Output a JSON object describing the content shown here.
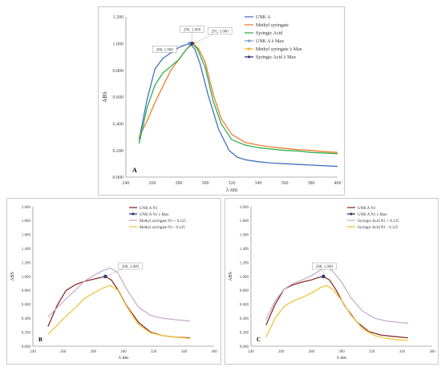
{
  "chart_data": [
    {
      "panel": "A",
      "type": "line",
      "xlabel": "λ nm",
      "ylabel": "ABS",
      "xlim": [
        240,
        400
      ],
      "ylim": [
        0,
        1.2
      ],
      "xticks": [
        "240",
        "260",
        "280",
        "300",
        "320",
        "340",
        "360",
        "380",
        "400"
      ],
      "yticks": [
        "0.000",
        "0.200",
        "0.400",
        "0.600",
        "0.800",
        "1.000",
        "1.200"
      ],
      "grid": false,
      "legend": "top-right",
      "panel_label": "A",
      "series": [
        {
          "name": "UNK A",
          "color": "#4472c4",
          "x": [
            250,
            256,
            262,
            268,
            274,
            280,
            285,
            288,
            292,
            296,
            302,
            310,
            318,
            324,
            330,
            340,
            350,
            360,
            370,
            380,
            390,
            400
          ],
          "y": [
            0.28,
            0.58,
            0.81,
            0.89,
            0.93,
            0.97,
            0.99,
            1.0,
            0.96,
            0.85,
            0.62,
            0.36,
            0.2,
            0.15,
            0.13,
            0.115,
            0.105,
            0.1,
            0.095,
            0.09,
            0.085,
            0.08
          ]
        },
        {
          "name": "Methyl syringate",
          "color": "#ed7d31",
          "x": [
            250,
            256,
            262,
            268,
            274,
            280,
            286,
            291,
            295,
            300,
            306,
            312,
            320,
            330,
            340,
            350,
            360,
            370,
            380,
            390,
            400
          ],
          "y": [
            0.3,
            0.42,
            0.56,
            0.68,
            0.8,
            0.88,
            0.96,
            1.0,
            0.96,
            0.86,
            0.62,
            0.44,
            0.32,
            0.26,
            0.24,
            0.225,
            0.215,
            0.205,
            0.2,
            0.19,
            0.185
          ]
        },
        {
          "name": "Syringic Acid",
          "color": "#2eb04c",
          "x": [
            250,
            256,
            262,
            268,
            274,
            280,
            286,
            290,
            294,
            300,
            306,
            312,
            320,
            330,
            340,
            350,
            360,
            370,
            380,
            390,
            400
          ],
          "y": [
            0.25,
            0.52,
            0.69,
            0.78,
            0.83,
            0.88,
            0.96,
            1.0,
            0.96,
            0.82,
            0.57,
            0.4,
            0.28,
            0.24,
            0.22,
            0.21,
            0.2,
            0.195,
            0.185,
            0.18,
            0.175
          ]
        }
      ],
      "max_markers": [
        {
          "name": "UNK A λ Max",
          "color": "#7d9cd4",
          "x": 288,
          "y": 1.0,
          "label": "288, 1.000"
        },
        {
          "name": "Methyl syringate λ Max",
          "color": "#f0b032",
          "x": 291,
          "y": 1.0,
          "label": "291, 1.000"
        },
        {
          "name": "Syringic Acid λ Max",
          "color": "#2f3a7a",
          "x": 290,
          "y": 1.0,
          "label": "290, 1.000"
        }
      ]
    },
    {
      "panel": "B",
      "type": "line",
      "xlabel": "λ nm",
      "ylabel": "ABS",
      "xlim": [
        240,
        360
      ],
      "ylim": [
        0,
        2.0
      ],
      "xticks": [
        "240",
        "260",
        "280",
        "300",
        "320",
        "340",
        "360"
      ],
      "yticks": [
        "0.000",
        "0.200",
        "0.400",
        "0.600",
        "0.800",
        "1.000",
        "1.200",
        "1.400",
        "1.600",
        "1.800",
        "2.000"
      ],
      "grid": false,
      "legend": "top-right",
      "panel_label": "B",
      "series": [
        {
          "name": "UNK A N1",
          "color": "#8b2e26",
          "x": [
            250,
            256,
            262,
            268,
            274,
            280,
            284,
            288,
            292,
            296,
            302,
            310,
            318,
            326,
            334,
            344
          ],
          "y": [
            0.28,
            0.58,
            0.8,
            0.88,
            0.93,
            0.96,
            0.98,
            1.0,
            0.95,
            0.82,
            0.58,
            0.34,
            0.2,
            0.15,
            0.13,
            0.12
          ]
        },
        {
          "name": "Methyl syringate N1 + 0.125",
          "color": "#c8aed0",
          "x": [
            250,
            256,
            262,
            268,
            274,
            280,
            286,
            291,
            296,
            302,
            310,
            318,
            326,
            334,
            344
          ],
          "y": [
            0.42,
            0.55,
            0.68,
            0.8,
            0.93,
            1.01,
            1.08,
            1.12,
            1.06,
            0.82,
            0.56,
            0.44,
            0.4,
            0.38,
            0.36
          ]
        },
        {
          "name": "Methyl syringate N1 - 0.125",
          "color": "#f0c43c",
          "x": [
            250,
            256,
            262,
            268,
            274,
            280,
            286,
            291,
            296,
            302,
            310,
            318,
            326,
            334,
            344
          ],
          "y": [
            0.17,
            0.3,
            0.43,
            0.55,
            0.68,
            0.76,
            0.83,
            0.87,
            0.81,
            0.57,
            0.31,
            0.19,
            0.15,
            0.13,
            0.11
          ]
        }
      ],
      "max_markers": [
        {
          "name": "UNK A N1 λ Max",
          "color": "#2f3a7a",
          "x": 288,
          "y": 1.0,
          "label": "288, 1.000"
        }
      ]
    },
    {
      "panel": "C",
      "type": "line",
      "xlabel": "λ nm",
      "ylabel": "ABS",
      "xlim": [
        240,
        360
      ],
      "ylim": [
        0,
        2.0
      ],
      "xticks": [
        "240",
        "260",
        "280",
        "300",
        "320",
        "340",
        "360"
      ],
      "yticks": [
        "0.000",
        "0.200",
        "0.400",
        "0.600",
        "0.800",
        "1.000",
        "1.200",
        "1.400",
        "1.600",
        "1.800",
        "2.000"
      ],
      "grid": false,
      "legend": "top-right",
      "panel_label": "C",
      "series": [
        {
          "name": "UNK A N1",
          "color": "#8b2e26",
          "x": [
            250,
            256,
            262,
            268,
            274,
            280,
            284,
            288,
            292,
            296,
            302,
            310,
            318,
            326,
            334,
            344
          ],
          "y": [
            0.3,
            0.6,
            0.82,
            0.88,
            0.92,
            0.95,
            0.98,
            1.0,
            0.95,
            0.82,
            0.58,
            0.35,
            0.21,
            0.16,
            0.14,
            0.12
          ]
        },
        {
          "name": "Syringic Acid N1 + 0.125",
          "color": "#c8aed0",
          "x": [
            250,
            256,
            262,
            268,
            274,
            280,
            286,
            290,
            294,
            300,
            306,
            314,
            322,
            330,
            338,
            344
          ],
          "y": [
            0.38,
            0.65,
            0.82,
            0.9,
            0.95,
            1.01,
            1.09,
            1.13,
            1.08,
            0.92,
            0.7,
            0.5,
            0.4,
            0.36,
            0.34,
            0.33
          ]
        },
        {
          "name": "Syringic Acid N1 - 0.125",
          "color": "#f0c43c",
          "x": [
            250,
            256,
            262,
            268,
            274,
            280,
            286,
            290,
            294,
            300,
            306,
            314,
            322,
            330,
            338,
            344
          ],
          "y": [
            0.13,
            0.4,
            0.57,
            0.65,
            0.7,
            0.76,
            0.84,
            0.87,
            0.82,
            0.66,
            0.45,
            0.25,
            0.15,
            0.11,
            0.09,
            0.08
          ]
        }
      ],
      "max_markers": [
        {
          "name": "UNK A N1 λ Max",
          "color": "#2f3a7a",
          "x": 288,
          "y": 1.0,
          "label": "288, 1.000"
        }
      ]
    }
  ]
}
